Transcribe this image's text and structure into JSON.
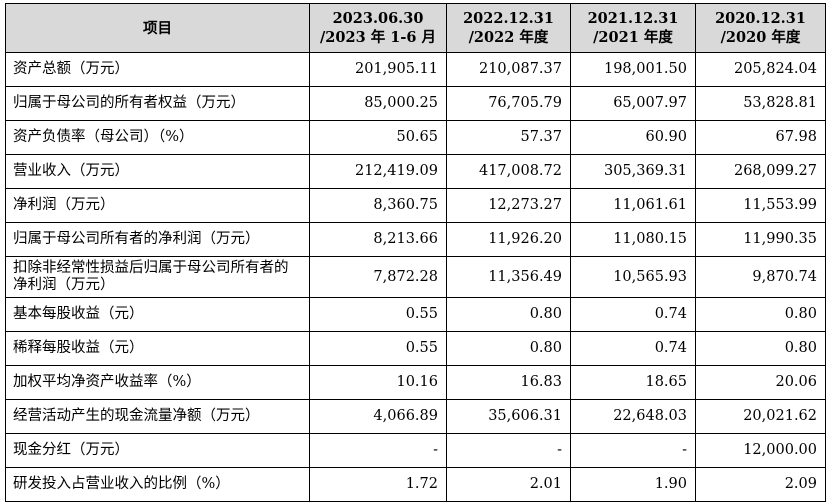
{
  "header": {
    "item": "项目",
    "columns": [
      {
        "line1": "2023.06.30",
        "line2": "/2023 年 1-6 月"
      },
      {
        "line1": "2022.12.31",
        "line2": "/2022 年度"
      },
      {
        "line1": "2021.12.31",
        "line2": "/2021 年度"
      },
      {
        "line1": "2020.12.31",
        "line2": "/2020 年度"
      }
    ]
  },
  "rows": [
    {
      "label": "资产总额（万元）",
      "values": [
        "201,905.11",
        "210,087.37",
        "198,001.50",
        "205,824.04"
      ]
    },
    {
      "label": "归属于母公司的所有者权益（万元）",
      "values": [
        "85,000.25",
        "76,705.79",
        "65,007.97",
        "53,828.81"
      ]
    },
    {
      "label": "资产负债率（母公司）（%）",
      "values": [
        "50.65",
        "57.37",
        "60.90",
        "67.98"
      ]
    },
    {
      "label": "营业收入（万元）",
      "values": [
        "212,419.09",
        "417,008.72",
        "305,369.31",
        "268,099.27"
      ]
    },
    {
      "label": "净利润（万元）",
      "values": [
        "8,360.75",
        "12,273.27",
        "11,061.61",
        "11,553.99"
      ]
    },
    {
      "label": "归属于母公司所有者的净利润（万元）",
      "values": [
        "8,213.66",
        "11,926.20",
        "11,080.15",
        "11,990.35"
      ]
    },
    {
      "label": "扣除非经常性损益后归属于母公司所有者的净利润（万元）",
      "values": [
        "7,872.28",
        "11,356.49",
        "10,565.93",
        "9,870.74"
      ]
    },
    {
      "label": "基本每股收益（元）",
      "values": [
        "0.55",
        "0.80",
        "0.74",
        "0.80"
      ]
    },
    {
      "label": "稀释每股收益（元）",
      "values": [
        "0.55",
        "0.80",
        "0.74",
        "0.80"
      ]
    },
    {
      "label": "加权平均净资产收益率（%）",
      "values": [
        "10.16",
        "16.83",
        "18.65",
        "20.06"
      ]
    },
    {
      "label": "经营活动产生的现金流量净额（万元）",
      "values": [
        "4,066.89",
        "35,606.31",
        "22,648.03",
        "20,021.62"
      ]
    },
    {
      "label": "现金分红（万元）",
      "values": [
        "-",
        "-",
        "-",
        "12,000.00"
      ]
    },
    {
      "label": "研发投入占营业收入的比例（%）",
      "values": [
        "1.72",
        "2.01",
        "1.90",
        "2.09"
      ]
    }
  ]
}
